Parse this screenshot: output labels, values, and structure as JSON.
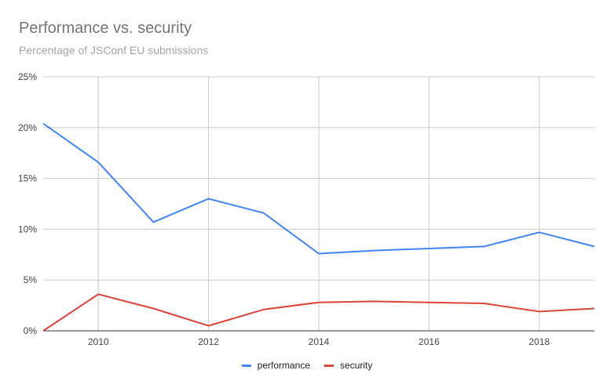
{
  "chart_data": {
    "type": "line",
    "title": "Performance vs. security",
    "subtitle": "Percentage of JSConf EU submissions",
    "xlabel": "",
    "ylabel": "",
    "x": [
      2009,
      2010,
      2011,
      2012,
      2013,
      2014,
      2015,
      2016,
      2017,
      2018,
      2019
    ],
    "xlim": [
      2009,
      2019
    ],
    "ylim": [
      0,
      25
    ],
    "x_ticks": [
      2010,
      2012,
      2014,
      2016,
      2018
    ],
    "y_ticks": [
      0,
      5,
      10,
      15,
      20,
      25
    ],
    "y_tick_suffix": "%",
    "grid": true,
    "legend_position": "bottom",
    "series": [
      {
        "name": "performance",
        "color": "#4285f4",
        "values": [
          20.4,
          16.6,
          10.7,
          13.0,
          11.6,
          7.6,
          7.9,
          8.1,
          8.3,
          9.7,
          8.3
        ]
      },
      {
        "name": "security",
        "color": "#db4437",
        "values": [
          0.0,
          3.6,
          2.2,
          0.5,
          2.1,
          2.8,
          2.9,
          2.8,
          2.7,
          1.9,
          2.2
        ]
      }
    ]
  }
}
